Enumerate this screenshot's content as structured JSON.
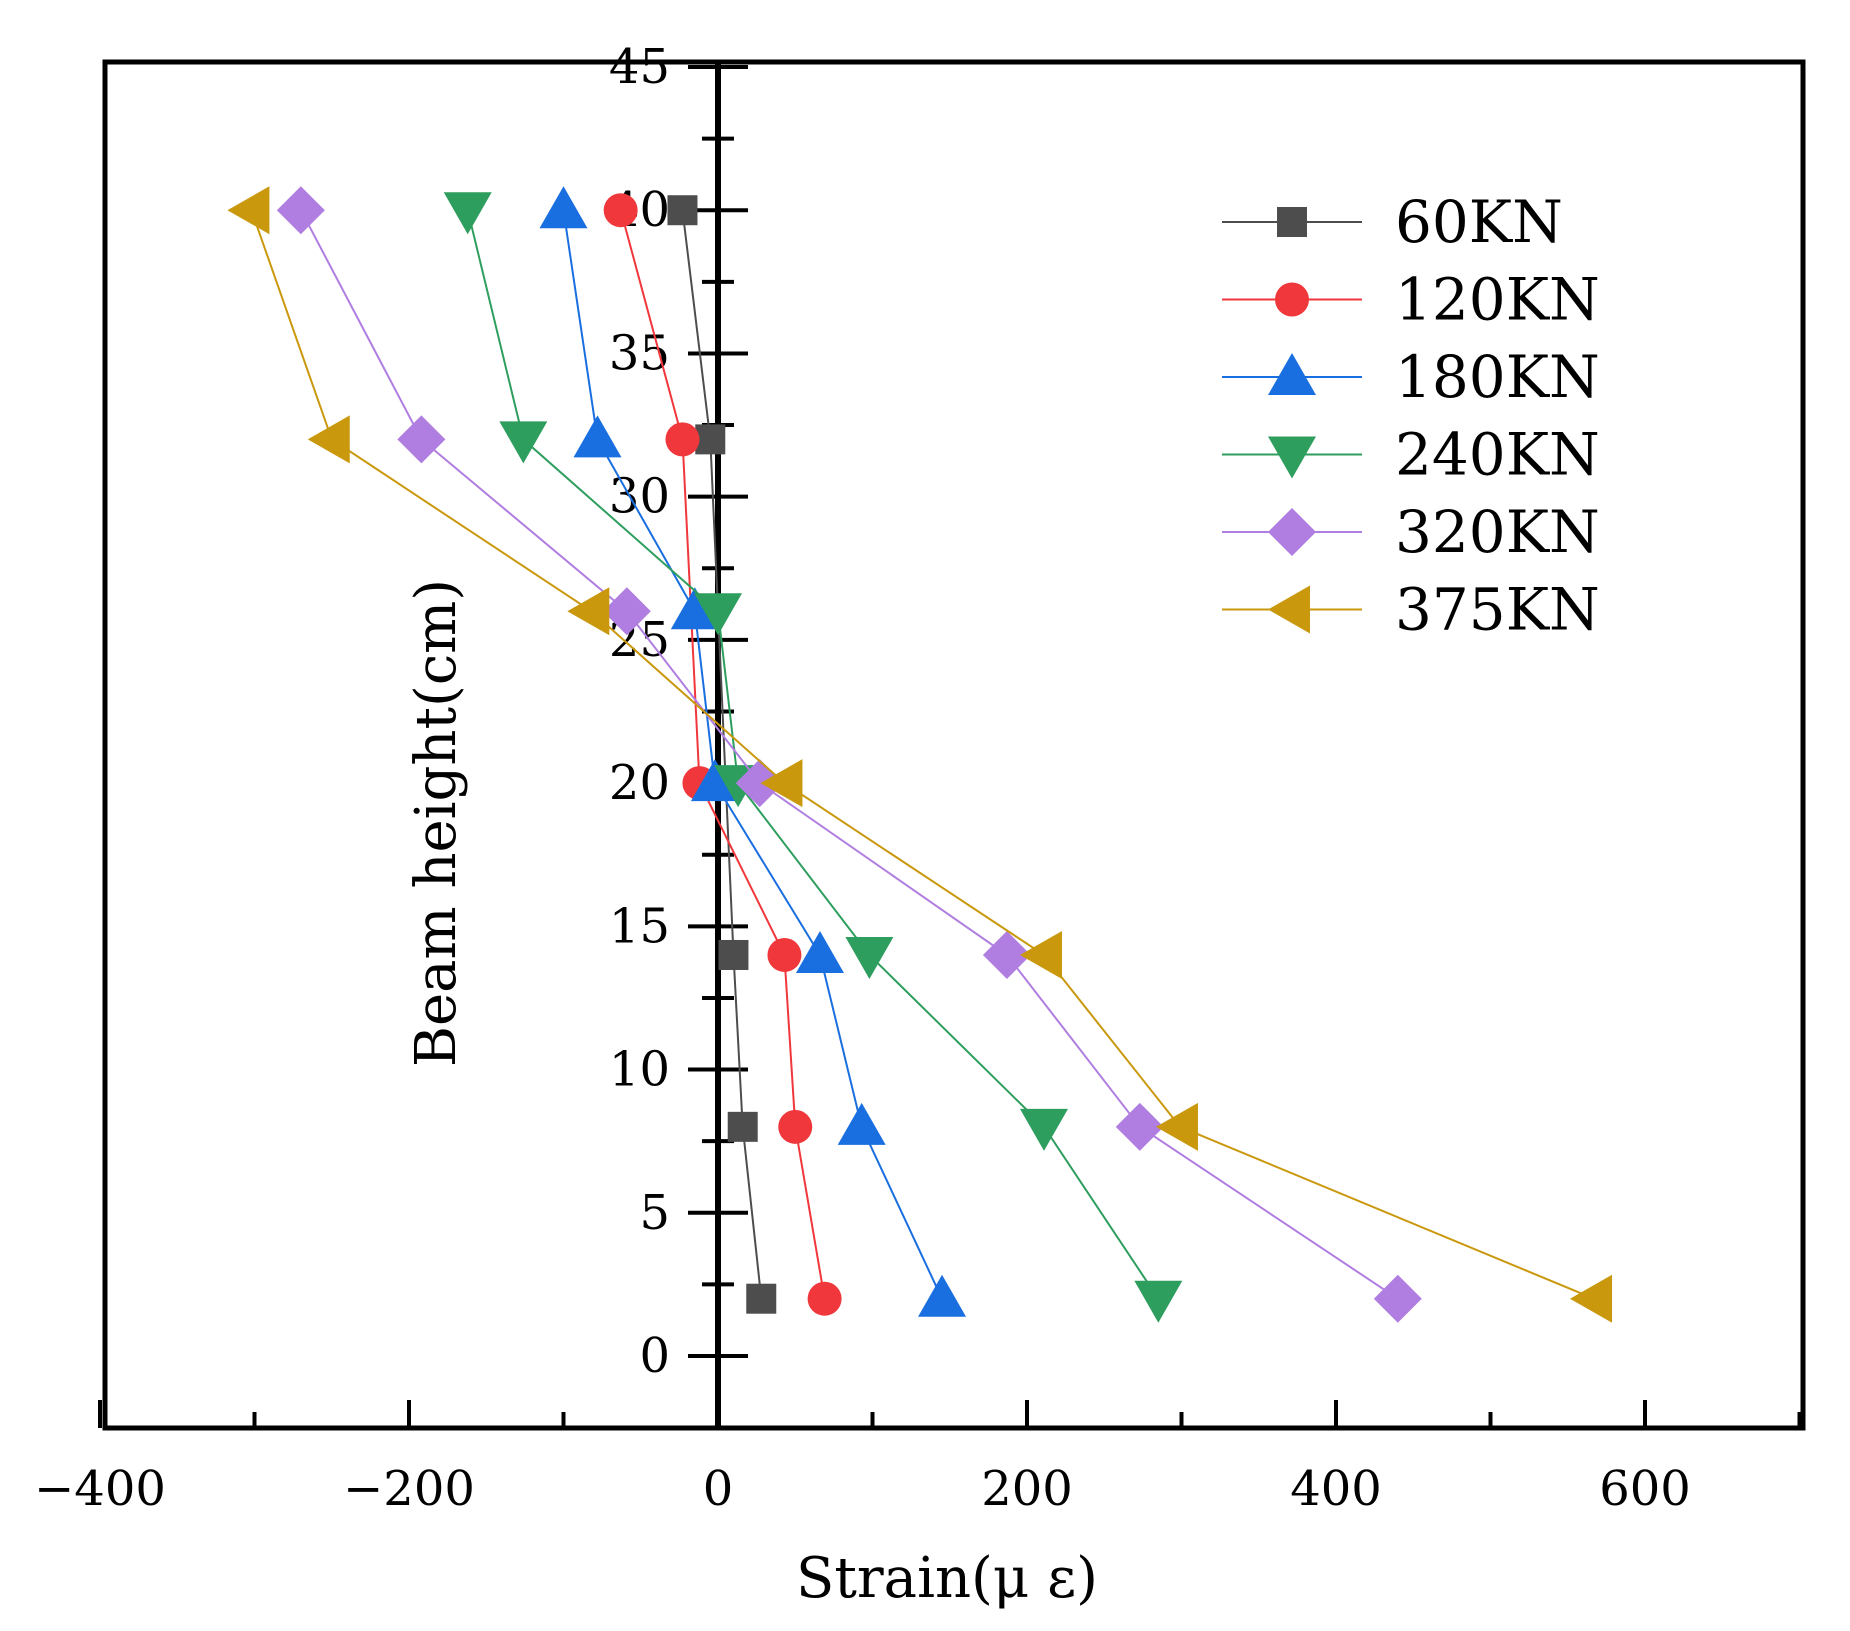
{
  "chart_data": {
    "type": "line",
    "title": "",
    "xlabel": "Strain(μ ε)",
    "ylabel": "Beam height(cm)",
    "xlim": [
      -400,
      700
    ],
    "ylim": [
      -2.5,
      45
    ],
    "xticks": [
      -400,
      -200,
      0,
      200,
      400,
      600
    ],
    "xtick_labels": [
      "−400",
      "−200",
      "0",
      "200",
      "400",
      "600"
    ],
    "yticks": [
      0,
      5,
      10,
      15,
      20,
      25,
      30,
      35,
      40,
      45
    ],
    "ytick_labels": [
      "0",
      "5",
      "10",
      "15",
      "20",
      "25",
      "30",
      "35",
      "40",
      "45"
    ],
    "grid": false,
    "legend_position": "top-right",
    "series": [
      {
        "name": "60KN",
        "color": "#4d4d4d",
        "marker": "square",
        "x": [
          -23,
          -5,
          10,
          16,
          28
        ],
        "y": [
          40,
          32,
          14,
          8,
          2
        ]
      },
      {
        "name": "120KN",
        "color": "#f0373c",
        "marker": "circle",
        "x": [
          -63,
          -23,
          -12,
          43,
          50,
          69
        ],
        "y": [
          40,
          32,
          20,
          14,
          8,
          2
        ]
      },
      {
        "name": "180KN",
        "color": "#1a6fe0",
        "marker": "triangle-up",
        "x": [
          -100,
          -78,
          -15,
          -2,
          66,
          93,
          145
        ],
        "y": [
          40,
          32,
          26,
          20,
          14,
          8,
          2
        ]
      },
      {
        "name": "240KN",
        "color": "#2e9e5e",
        "marker": "triangle-down",
        "x": [
          -162,
          -126,
          0,
          13,
          98,
          211,
          285
        ],
        "y": [
          40,
          32,
          26,
          20,
          14,
          8,
          2
        ]
      },
      {
        "name": "320KN",
        "color": "#b07ee0",
        "marker": "diamond",
        "x": [
          -270,
          -192,
          -59,
          27,
          187,
          273,
          440
        ],
        "y": [
          40,
          32,
          26,
          20,
          14,
          8,
          2
        ]
      },
      {
        "name": "375KN",
        "color": "#c9980c",
        "marker": "triangle-left",
        "x": [
          -302,
          -250,
          -82,
          43,
          211,
          299,
          567
        ],
        "y": [
          40,
          32,
          26,
          20,
          14,
          8,
          2
        ]
      }
    ]
  }
}
